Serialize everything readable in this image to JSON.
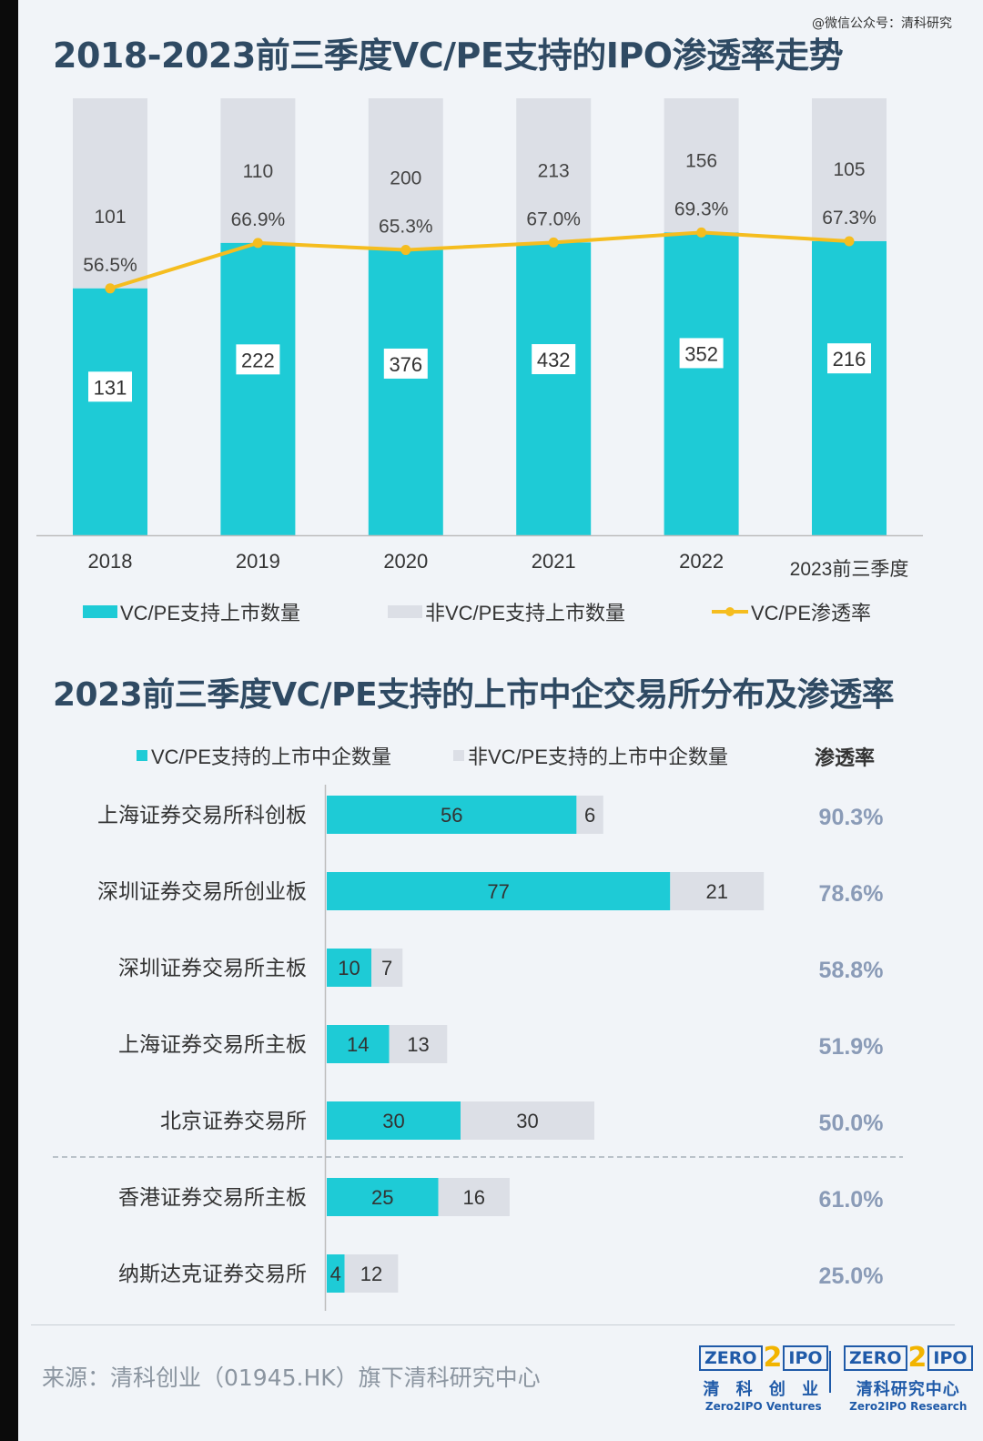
{
  "watermark": "@微信公众号：清科研究",
  "title1": "2018-2023前三季度VC/PE支持的IPO渗透率走势",
  "title2": "2023前三季度VC/PE支持的上市中企交易所分布及渗透率",
  "colors": {
    "teal": "#1ecbd6",
    "grey": "#dcdfe6",
    "gold": "#f5bd1f",
    "title": "#2f4a63",
    "rate": "#8a9bb7"
  },
  "chart_data": [
    {
      "type": "bar",
      "stacked": true,
      "categories": [
        "2018",
        "2019",
        "2020",
        "2021",
        "2022",
        "2023前三季度"
      ],
      "series": [
        {
          "name": "VC/PE支持上市数量",
          "values": [
            131,
            222,
            376,
            432,
            352,
            216
          ]
        },
        {
          "name": "非VC/PE支持上市数量",
          "values": [
            101,
            110,
            200,
            213,
            156,
            105
          ]
        }
      ],
      "line_series": {
        "name": "VC/PE渗透率",
        "values": [
          56.5,
          66.9,
          65.3,
          67.0,
          69.3,
          67.3
        ],
        "labels": [
          "56.5%",
          "66.9%",
          "65.3%",
          "67.0%",
          "69.3%",
          "67.3%"
        ]
      },
      "legend": [
        "VC/PE支持上市数量",
        "非VC/PE支持上市数量",
        "VC/PE渗透率"
      ],
      "legend_position": "bottom"
    },
    {
      "type": "bar",
      "orientation": "horizontal",
      "stacked": true,
      "categories": [
        "上海证券交易所科创板",
        "深圳证券交易所创业板",
        "深圳证券交易所主板",
        "上海证券交易所主板",
        "北京证券交易所",
        "香港证券交易所主板",
        "纳斯达克证券交易所"
      ],
      "series": [
        {
          "name": "VC/PE支持的上市中企数量",
          "values": [
            56,
            77,
            10,
            14,
            30,
            25,
            4
          ]
        },
        {
          "name": "非VC/PE支持的上市中企数量",
          "values": [
            6,
            21,
            7,
            13,
            30,
            16,
            12
          ]
        }
      ],
      "rate_header": "渗透率",
      "rates": [
        "90.3%",
        "78.6%",
        "58.8%",
        "51.9%",
        "50.0%",
        "61.0%",
        "25.0%"
      ],
      "legend_position": "top"
    }
  ],
  "source": "来源：清科创业（01945.HK）旗下清科研究中心",
  "logos": [
    {
      "left_text": "ZERO",
      "two": "2",
      "right_text": "IPO",
      "cn": "清 科 创 业",
      "en": "Zero2IPO Ventures"
    },
    {
      "left_text": "ZERO",
      "two": "2",
      "right_text": "IPO",
      "cn": "清科研究中心",
      "en": "Zero2IPO Research"
    }
  ]
}
